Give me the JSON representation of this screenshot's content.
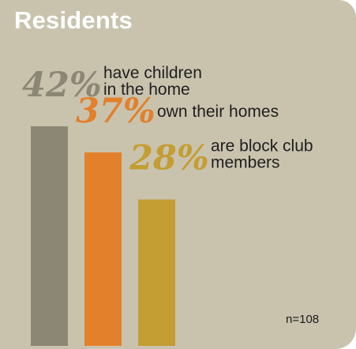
{
  "title": "Residents",
  "note": "n=108",
  "colors": {
    "background": "#c9c3ae",
    "title": "#ffffff"
  },
  "chart_data": {
    "type": "bar",
    "title": "Residents",
    "ylim": [
      0,
      50
    ],
    "grid": false,
    "series": [
      {
        "category": "have children in the home",
        "value": 42,
        "display": "42%",
        "label_lines": [
          "have children",
          "in the home"
        ],
        "color": "#8c8775"
      },
      {
        "category": "own their homes",
        "value": 37,
        "display": "37%",
        "label_lines": [
          "own their homes"
        ],
        "color": "#e3802b"
      },
      {
        "category": "are block club members",
        "value": 28,
        "display": "28%",
        "label_lines": [
          "are block club",
          "members"
        ],
        "color": "#c49d33"
      }
    ]
  }
}
